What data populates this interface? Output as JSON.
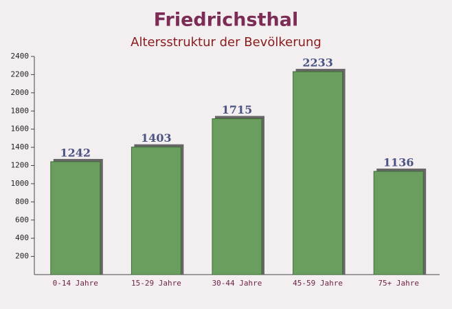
{
  "chart_data": {
    "type": "bar",
    "title": "Friedrichsthal",
    "subtitle": "Altersstruktur der Bevölkerung",
    "categories": [
      "0-14 Jahre",
      "15-29 Jahre",
      "30-44 Jahre",
      "45-59 Jahre",
      "75+ Jahre"
    ],
    "values": [
      1242,
      1403,
      1715,
      2233,
      1136
    ],
    "color": "#6a9e5e",
    "ylim": [
      0,
      2400
    ],
    "yticks": [
      200,
      400,
      600,
      800,
      1000,
      1200,
      1400,
      1600,
      1800,
      2000,
      2200,
      2400
    ],
    "grid": false
  }
}
